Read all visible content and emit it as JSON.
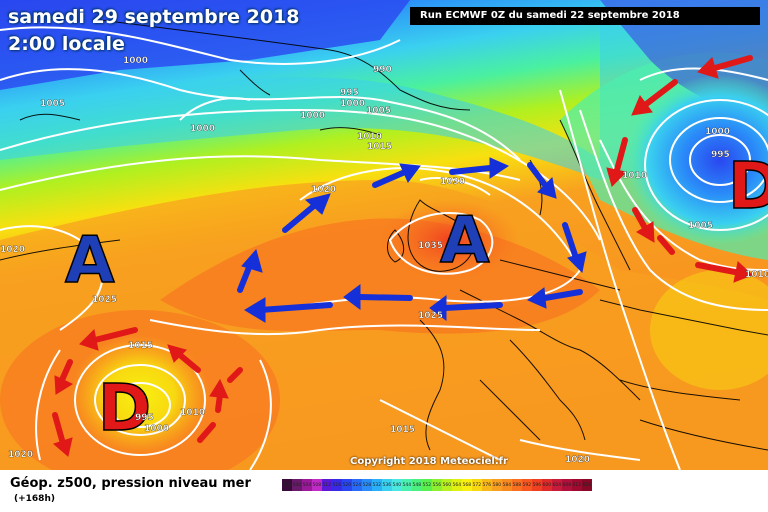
{
  "header": {
    "date": "samedi 29 septembre 2018",
    "time": "2:00 locale",
    "run": "Run ECMWF 0Z du samedi 22 septembre 2018"
  },
  "map": {
    "copyright": "Copyright 2018 Meteociel.fr",
    "pressure_labels": [
      "1000",
      "1005",
      "1000",
      "990",
      "995",
      "1000",
      "1005",
      "1000",
      "1010",
      "1015",
      "1020",
      "1030",
      "1035",
      "1025",
      "1025",
      "1015",
      "995",
      "1000",
      "1010",
      "1015",
      "1020",
      "1020",
      "1000",
      "995",
      "1010",
      "1005",
      "1010",
      "1020"
    ],
    "systems": {
      "high_left": "A",
      "high_center": "A",
      "low_sw": "D",
      "low_ne": "D"
    },
    "colors": {
      "high": "#1e3fb5",
      "low": "#e01818",
      "arrow_blue": "#1530d8",
      "arrow_red": "#e01818"
    }
  },
  "legend": {
    "title": "Géop. z500, pression niveau mer",
    "subtitle": "(+168h)",
    "scale": [
      "496",
      "500",
      "504",
      "508",
      "512",
      "516",
      "520",
      "524",
      "528",
      "532",
      "536",
      "540",
      "544",
      "548",
      "552",
      "556",
      "560",
      "564",
      "568",
      "572",
      "576",
      "580",
      "584",
      "588",
      "592",
      "596",
      "600",
      "604",
      "608",
      "612",
      "616"
    ],
    "scale_colors": [
      "#3a0a3a",
      "#6a1a6a",
      "#9a1a9a",
      "#c22ac8",
      "#5a1ad8",
      "#3a2ae8",
      "#2a46f0",
      "#2a6af8",
      "#2a8cf8",
      "#2ab0f8",
      "#3ad0f0",
      "#4ae8e0",
      "#4af0b0",
      "#4af080",
      "#5af050",
      "#8af030",
      "#b8f020",
      "#e0f010",
      "#f8f010",
      "#f8d810",
      "#f8b818",
      "#f8a020",
      "#f88a20",
      "#f87020",
      "#f85820",
      "#f04020",
      "#e02a2a",
      "#c81a3a",
      "#b0103a",
      "#a00a30",
      "#880828"
    ]
  }
}
